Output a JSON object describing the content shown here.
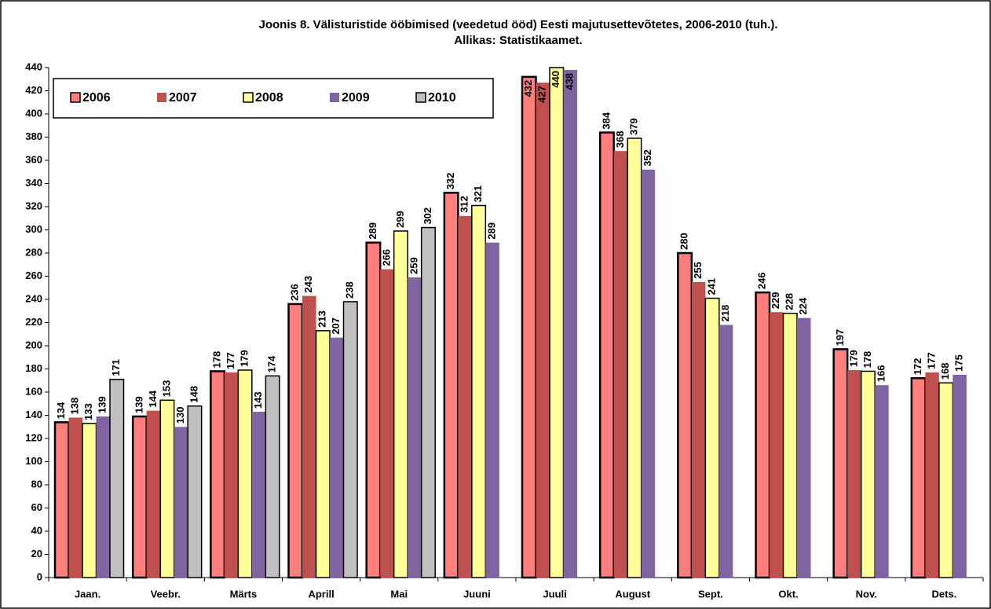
{
  "chart_data": {
    "type": "bar",
    "title": "Joonis 8. Välisturistide ööbimised (veedetud ööd) Eesti majutusettevõtetes, 2006-2010 (tuh.).",
    "subtitle": "Allikas: Statistikaamet.",
    "categories": [
      "Jaan.",
      "Veebr.",
      "Märts",
      "Aprill",
      "Mai",
      "Juuni",
      "Juuli",
      "August",
      "Sept.",
      "Okt.",
      "Nov.",
      "Dets."
    ],
    "series": [
      {
        "name": "2006",
        "color": "#ff7f7f",
        "label_color": "#f4a0a0",
        "values": [
          134,
          139,
          178,
          236,
          289,
          332,
          432,
          384,
          280,
          246,
          197,
          172
        ]
      },
      {
        "name": "2007",
        "color": "#c0504d",
        "label_color": "#c00000",
        "values": [
          138,
          144,
          177,
          243,
          266,
          312,
          427,
          368,
          255,
          229,
          179,
          177
        ]
      },
      {
        "name": "2008",
        "color": "#ffff99",
        "label_color": "#000000",
        "values": [
          133,
          153,
          179,
          213,
          299,
          321,
          440,
          379,
          241,
          228,
          178,
          168
        ]
      },
      {
        "name": "2009",
        "color": "#8064a2",
        "label_color": "#8064a2",
        "values": [
          139,
          130,
          143,
          207,
          259,
          289,
          438,
          352,
          218,
          224,
          166,
          175
        ]
      },
      {
        "name": "2010",
        "color": "#c0c0c0",
        "label_color": "#000000",
        "values": [
          171,
          148,
          174,
          238,
          302,
          null,
          null,
          null,
          null,
          null,
          null,
          null
        ]
      }
    ],
    "ylim": [
      0,
      440
    ],
    "yticks": [
      0,
      20,
      40,
      60,
      80,
      100,
      120,
      140,
      160,
      180,
      200,
      220,
      240,
      260,
      280,
      300,
      320,
      340,
      360,
      380,
      400,
      420,
      440
    ],
    "grid": false,
    "legend": "top-left"
  }
}
